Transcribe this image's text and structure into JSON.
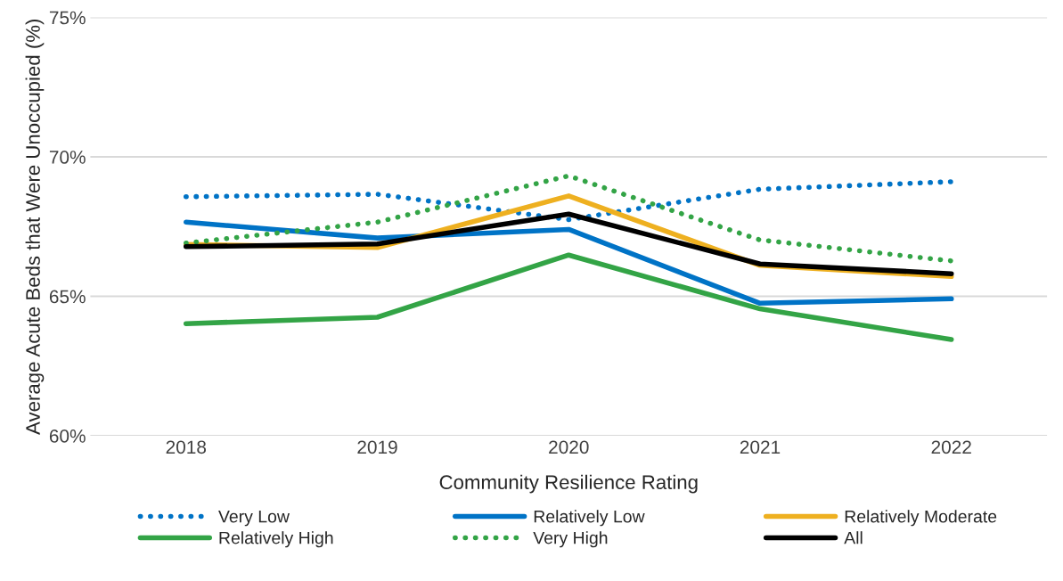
{
  "chart_data": {
    "type": "line",
    "xlabel": "Community Resilience Rating",
    "ylabel": "Average Acute Beds that Were Unoccupied (%)",
    "categories": [
      "2018",
      "2019",
      "2020",
      "2021",
      "2022"
    ],
    "series": [
      {
        "name": "Very Low",
        "color": "#0073c6",
        "line_style": "dotted",
        "values": [
          68.57,
          68.66,
          67.75,
          68.84,
          69.11
        ]
      },
      {
        "name": "Relatively Low",
        "color": "#0073c6",
        "line_style": "solid",
        "values": [
          67.66,
          67.09,
          67.4,
          64.75,
          64.91
        ]
      },
      {
        "name": "Relatively Moderate",
        "color": "#eeb020",
        "line_style": "solid",
        "values": [
          66.86,
          66.75,
          68.6,
          66.11,
          65.71
        ]
      },
      {
        "name": "Relatively High",
        "color": "#33a446",
        "line_style": "solid",
        "values": [
          64.02,
          64.25,
          66.48,
          64.55,
          63.45
        ]
      },
      {
        "name": "Very High",
        "color": "#33a446",
        "line_style": "dotted",
        "values": [
          66.91,
          67.66,
          69.32,
          67.02,
          66.27
        ]
      },
      {
        "name": "All",
        "color": "#000000",
        "line_style": "solid",
        "values": [
          66.78,
          66.88,
          67.95,
          66.16,
          65.81
        ]
      }
    ],
    "ylim": [
      60,
      75
    ],
    "yticks": [
      {
        "value": 60,
        "label": "60%"
      },
      {
        "value": 65,
        "label": "65%"
      },
      {
        "value": 70,
        "label": "70%"
      },
      {
        "value": 75,
        "label": "75%"
      }
    ],
    "grid": "y",
    "legend": "bottom",
    "marker": "none"
  }
}
